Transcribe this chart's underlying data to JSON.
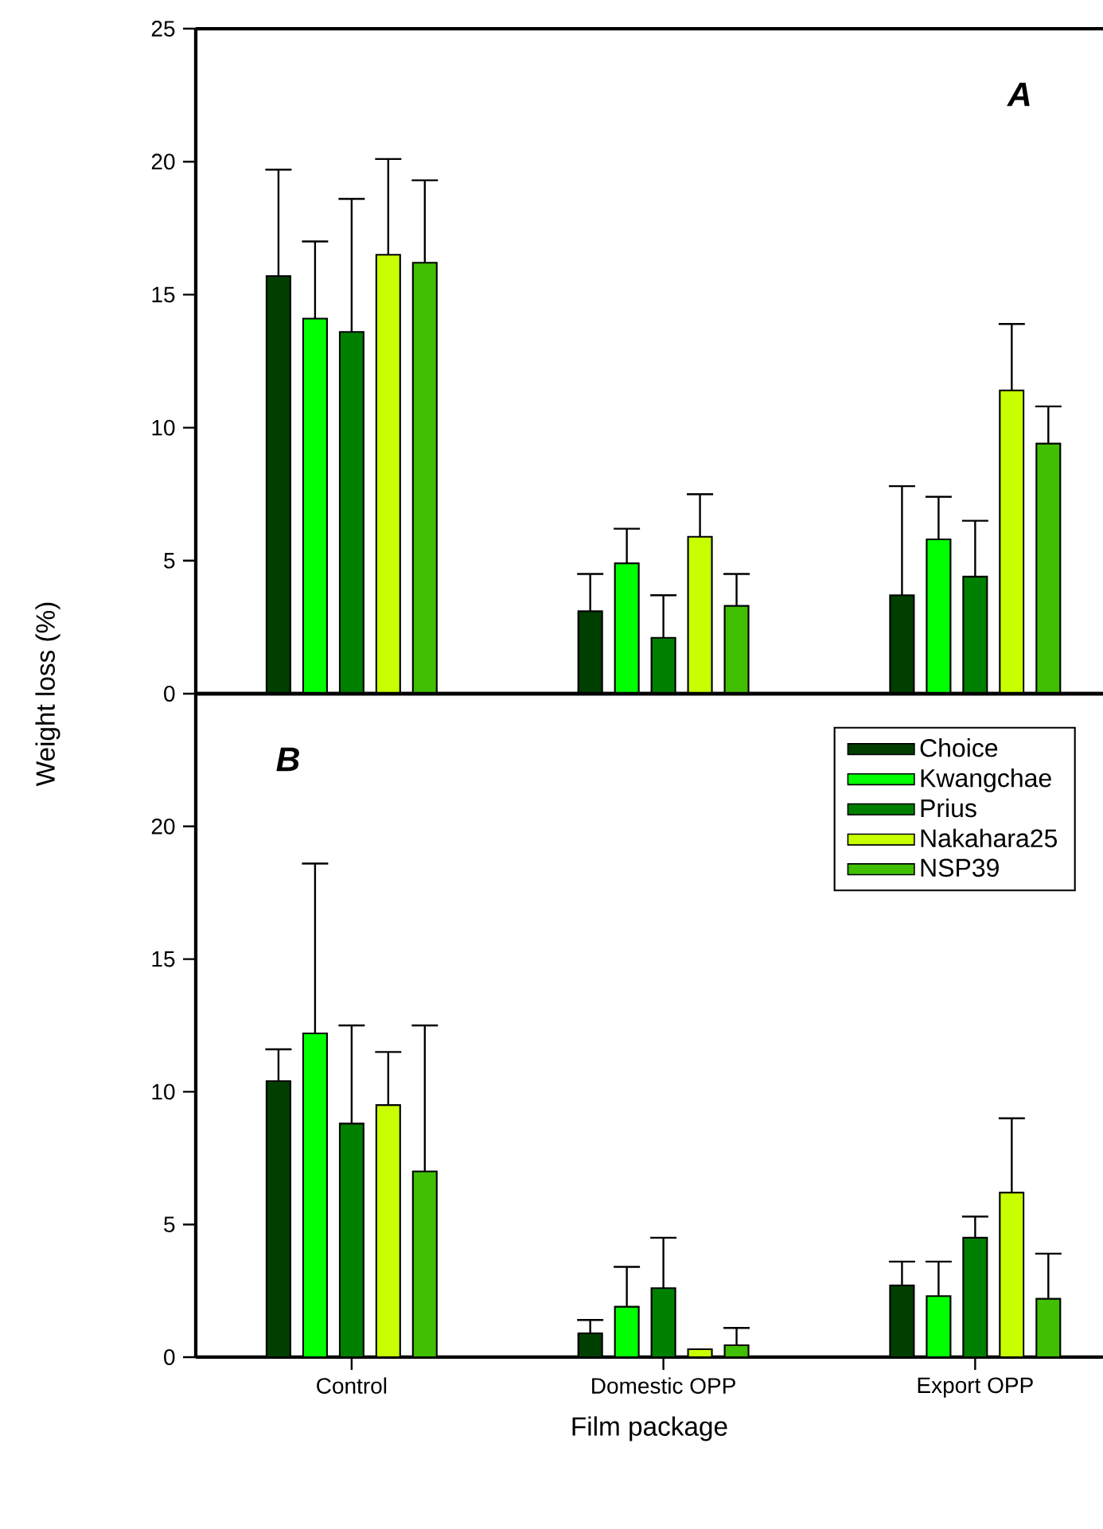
{
  "chart_data": [
    {
      "type": "bar",
      "ylabel": "Weight loss  (%)",
      "categories": [
        null,
        null,
        null
      ],
      "ylim": [
        0,
        25
      ],
      "yticks": [
        0,
        5,
        10,
        15,
        20,
        25
      ],
      "tick_labels": "y",
      "legend": false,
      "annotations": [
        "A"
      ],
      "series": [
        {
          "color": "#003f00",
          "values": [
            15.7,
            3.1,
            3.7
          ],
          "errors": [
            [
              15.7,
              19.7
            ],
            [
              3.1,
              4.5
            ],
            [
              3.7,
              7.8
            ]
          ]
        },
        {
          "color": "#00ff00",
          "values": [
            14.1,
            4.9,
            5.8
          ],
          "errors": [
            [
              14.1,
              17.0
            ],
            [
              4.9,
              6.2
            ],
            [
              5.8,
              7.4
            ]
          ]
        },
        {
          "color": "#008000",
          "values": [
            13.6,
            2.1,
            4.4
          ],
          "errors": [
            [
              13.6,
              18.6
            ],
            [
              2.1,
              3.7
            ],
            [
              4.4,
              6.5
            ]
          ]
        },
        {
          "color": "#c8ff00",
          "values": [
            16.5,
            5.9,
            11.4
          ],
          "errors": [
            [
              16.5,
              20.1
            ],
            [
              5.9,
              7.5
            ],
            [
              11.4,
              13.9
            ]
          ]
        },
        {
          "color": "#40c000",
          "values": [
            16.2,
            3.3,
            9.4
          ],
          "errors": [
            [
              16.2,
              19.3
            ],
            [
              3.3,
              4.5
            ],
            [
              9.4,
              10.8
            ]
          ]
        }
      ]
    },
    {
      "type": "bar",
      "xlabel": "Film package",
      "categories": [
        "Control",
        "Domestic OPP",
        "Export OPP"
      ],
      "ylim": [
        0,
        25
      ],
      "yticks": [
        0,
        5,
        10,
        15,
        20
      ],
      "legend": "top right",
      "annotations": [
        "B"
      ],
      "series": [
        {
          "name": "Choice",
          "color": "#003f00",
          "values": [
            10.4,
            0.9,
            2.7
          ],
          "errors": [
            [
              10.4,
              11.6
            ],
            [
              0.9,
              1.4
            ],
            [
              2.7,
              3.6
            ]
          ]
        },
        {
          "name": "Kwangchae",
          "color": "#00ff00",
          "values": [
            12.2,
            1.9,
            2.3
          ],
          "errors": [
            [
              12.2,
              18.6
            ],
            [
              1.9,
              3.4
            ],
            [
              2.3,
              3.6
            ]
          ]
        },
        {
          "name": "Prius",
          "color": "#008000",
          "values": [
            8.8,
            2.6,
            4.5
          ],
          "errors": [
            [
              8.8,
              12.5
            ],
            [
              2.6,
              4.5
            ],
            [
              4.5,
              5.3
            ]
          ]
        },
        {
          "name": "Nakahara25",
          "color": "#c8ff00",
          "values": [
            9.5,
            0.3,
            6.2
          ],
          "errors": [
            [
              9.5,
              11.5
            ],
            null,
            [
              6.2,
              9.0
            ]
          ]
        },
        {
          "name": "NSP39",
          "color": "#40c000",
          "values": [
            7.0,
            0.45,
            2.2
          ],
          "errors": [
            [
              7.0,
              12.5
            ],
            [
              0.45,
              1.1
            ],
            [
              2.2,
              3.9
            ]
          ]
        }
      ]
    }
  ]
}
